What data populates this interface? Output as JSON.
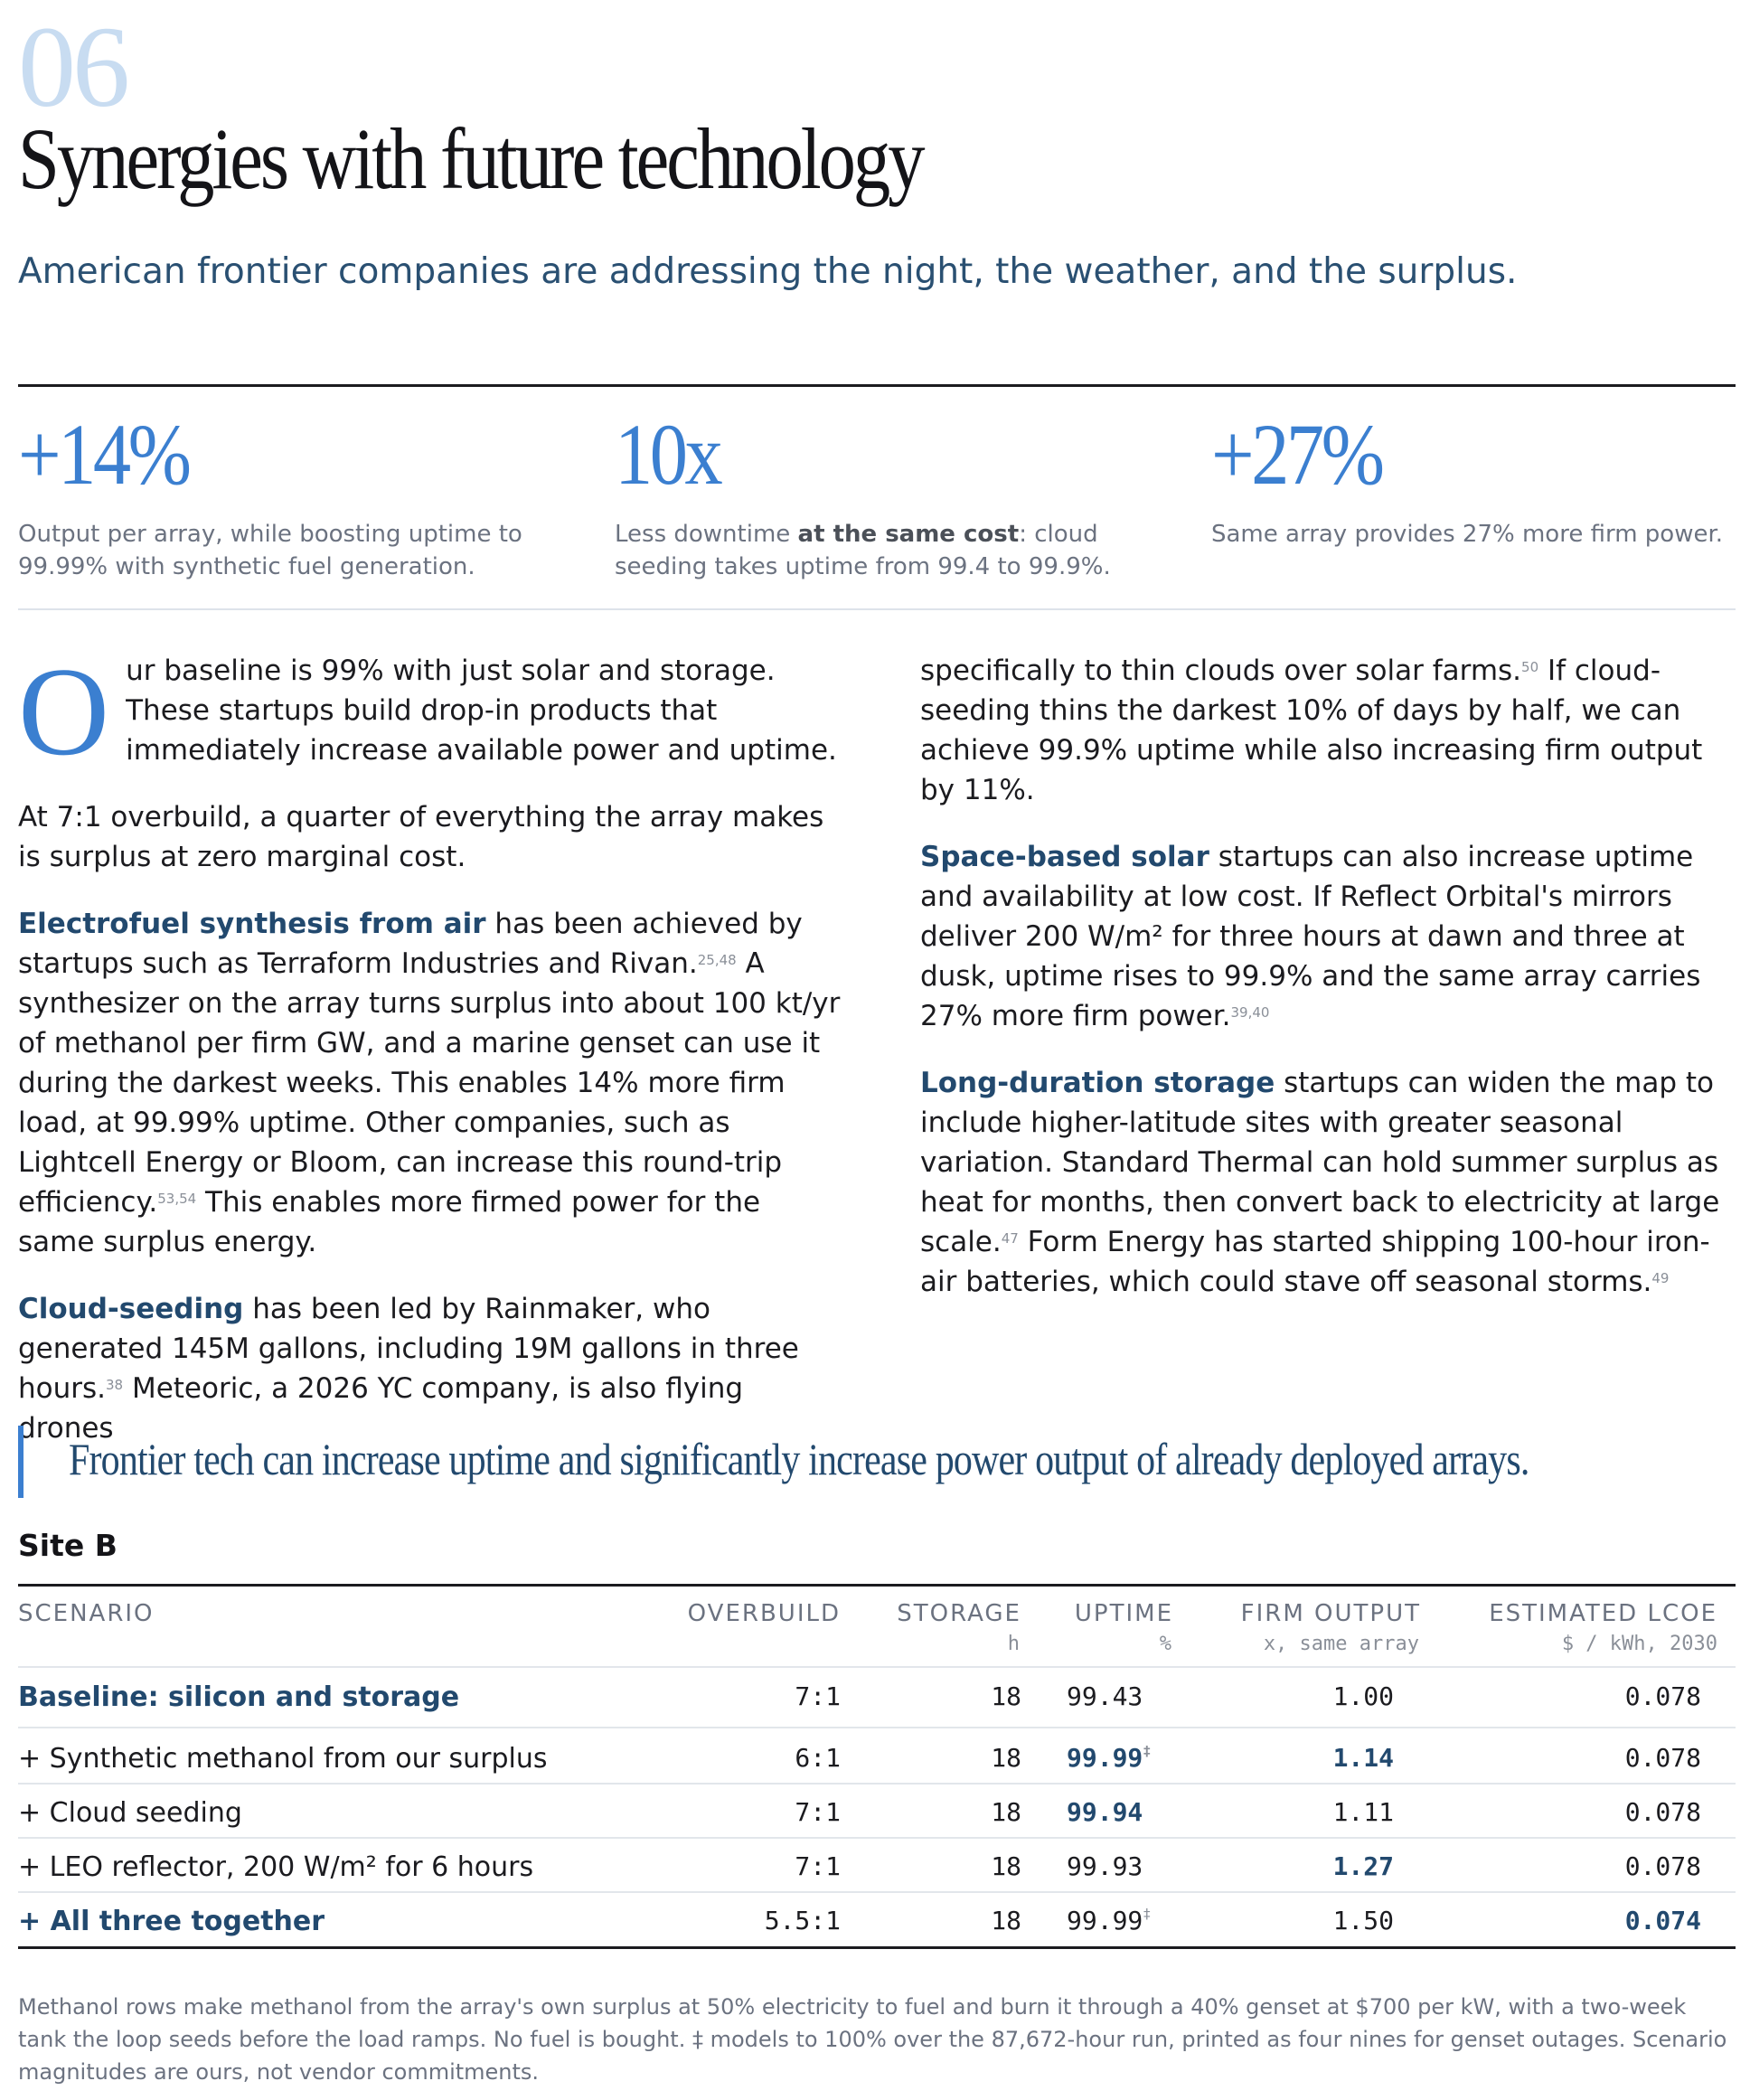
{
  "section": {
    "number": "06",
    "title": "Synergies with future technology",
    "subtitle": "American frontier companies are addressing the night, the weather, and the surplus."
  },
  "stats": [
    {
      "value": "+14%",
      "desc_pre": "Output per array, while boosting uptime to 99.99% with synthetic fuel generation.",
      "desc_bold": "",
      "desc_post": ""
    },
    {
      "value": "10x",
      "desc_pre": "Less downtime ",
      "desc_bold": "at the same cost",
      "desc_post": ": cloud seeding takes uptime from 99.4 to 99.9%."
    },
    {
      "value": "+27%",
      "desc_pre": "Same array provides 27% more firm power.",
      "desc_bold": "",
      "desc_post": ""
    }
  ],
  "body": {
    "intro_cap": "O",
    "intro_rest": "ur baseline is 99% with just solar and storage. These startups build drop-in products that immediately increase available power and uptime.",
    "p_overbuild": "At 7:1 overbuild, a quarter of everything the array makes is surplus at zero marginal cost.",
    "electrofuel_lead": "Electrofuel synthesis from air",
    "electrofuel_a": " has been achieved by startups such as Terraform Industries and Rivan.",
    "electrofuel_ref1": "25,48",
    "electrofuel_b": " A synthesizer on the array turns surplus into about 100 kt/yr of methanol per firm GW, and a marine genset can use it during the darkest weeks. This enables 14% more firm load, at 99.99% uptime. Other companies, such as Lightcell Energy or Bloom, can increase this round-trip efficiency.",
    "electrofuel_ref2": "53,54",
    "electrofuel_c": " This enables more firmed power for the same surplus energy.",
    "cloud_lead": "Cloud-seeding",
    "cloud_a": " has been led by Rainmaker, who generated 145M gallons, including 19M gallons in three hours.",
    "cloud_ref1": "38",
    "cloud_b": " Meteoric, a 2026 YC company, is also flying drones",
    "cloud_c": "specifically to thin clouds over solar farms.",
    "cloud_ref2": "50",
    "cloud_d": " If cloud-seeding thins the darkest 10% of days by half, we can achieve 99.9% uptime while also increasing firm output by 11%.",
    "space_lead": "Space-based solar",
    "space_a": " startups can also increase uptime and availability at low cost. If Reflect Orbital's mirrors deliver 200 W/m² for three hours at dawn and three at dusk, uptime rises to 99.9% and the same array carries 27% more firm power.",
    "space_ref": "39,40",
    "storage_lead": "Long-duration storage",
    "storage_a": " startups can widen the map to include higher-latitude sites with greater seasonal variation. Standard Thermal can hold summer surplus as heat for months, then convert back to electricity at large scale.",
    "storage_ref1": "47",
    "storage_b": " Form Energy has started shipping 100-hour iron-air batteries, which could stave off seasonal storms.",
    "storage_ref2": "49"
  },
  "pullquote": "Frontier tech can increase uptime and significantly increase power output of already deployed arrays.",
  "table": {
    "site_label": "Site B",
    "headers": {
      "scenario": "SCENARIO",
      "overbuild": "OVERBUILD",
      "storage": "STORAGE",
      "storage_unit": "h",
      "uptime": "UPTIME",
      "uptime_unit": "%",
      "firm": "FIRM OUTPUT",
      "firm_unit": "x, same array",
      "lcoe": "ESTIMATED LCOE",
      "lcoe_unit": "$ / kWh, 2030"
    },
    "rows": [
      {
        "scenario": "Baseline: silicon and storage",
        "overbuild": "7:1",
        "storage": "18",
        "uptime": "99.43",
        "uptime_mark": "",
        "firm": "1.00",
        "lcoe": "0.078"
      },
      {
        "scenario": "+ Synthetic methanol from our surplus",
        "overbuild": "6:1",
        "storage": "18",
        "uptime": "99.99",
        "uptime_mark": "‡",
        "firm": "1.14",
        "lcoe": "0.078"
      },
      {
        "scenario": "+ Cloud seeding",
        "overbuild": "7:1",
        "storage": "18",
        "uptime": "99.94",
        "uptime_mark": "",
        "firm": "1.11",
        "lcoe": "0.078"
      },
      {
        "scenario": "+ LEO reflector, 200 W/m² for 6 hours",
        "overbuild": "7:1",
        "storage": "18",
        "uptime": "99.93",
        "uptime_mark": "",
        "firm": "1.27",
        "lcoe": "0.078"
      },
      {
        "scenario": "+ All three together",
        "overbuild": "5.5:1",
        "storage": "18",
        "uptime": "99.99",
        "uptime_mark": "‡",
        "firm": "1.50",
        "lcoe": "0.074"
      }
    ],
    "footnote": "Methanol rows make methanol from the array's own surplus at 50% electricity to fuel and burn it through a 40% genset at $700 per kW, with a two-week tank the loop seeds before the load ramps. No fuel is bought. ‡ models to 100% over the 87,672-hour run, printed as four nines for genset outages. Scenario magnitudes are ours, not vendor commitments."
  },
  "colors": {
    "accent": "#3b7fd0",
    "navy": "#22496e",
    "muted": "#6b7280",
    "faint_number": "#c8dcf1"
  }
}
